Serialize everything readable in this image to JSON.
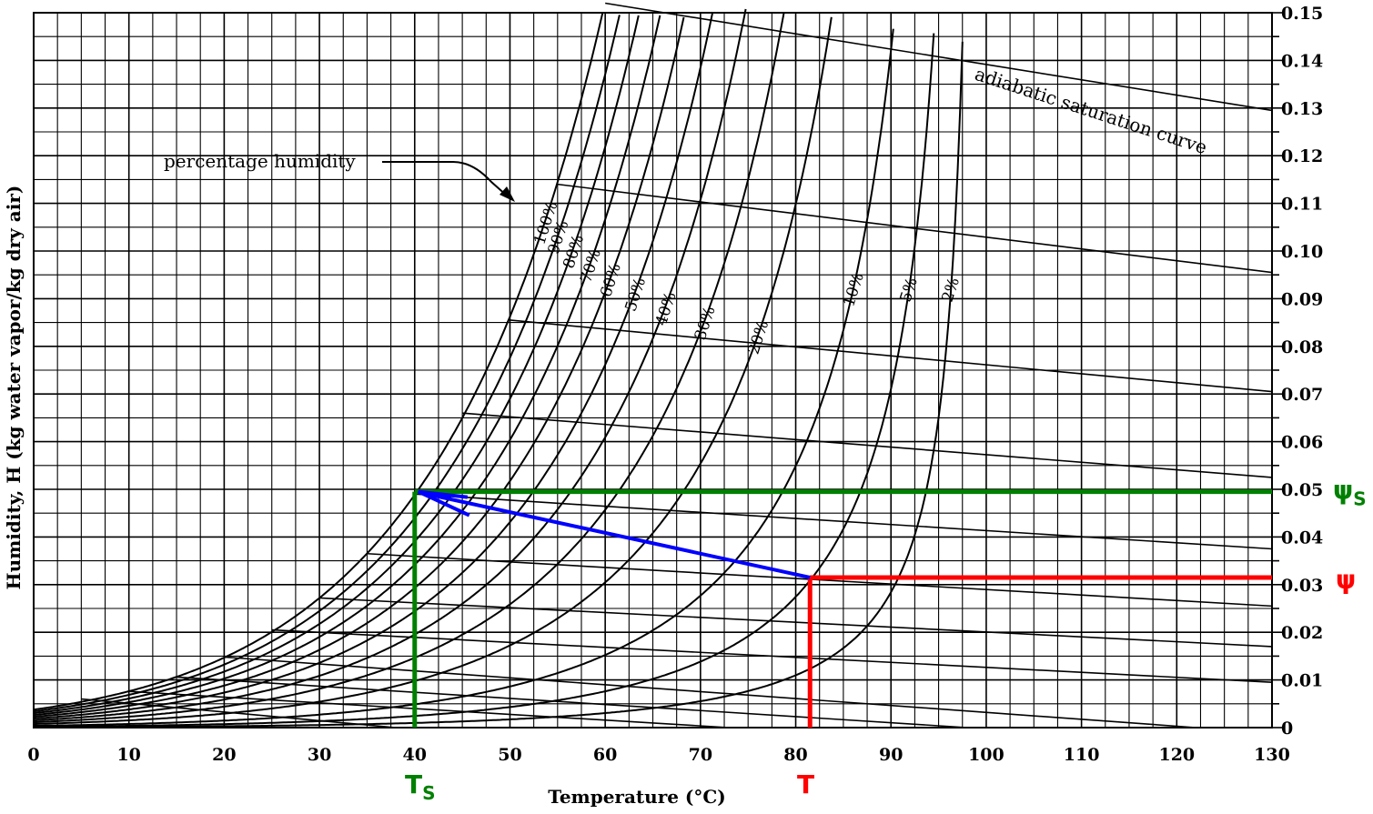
{
  "chart_data": {
    "type": "line",
    "subtype": "psychrometric chart",
    "xlabel": "Temperature (°C)",
    "ylabel": "Humidity, H (kg water vapor/kg dry air)",
    "xlim": [
      0,
      130
    ],
    "ylim": [
      0,
      0.15
    ],
    "x_ticks": [
      "0",
      "10",
      "20",
      "30",
      "40",
      "50",
      "60",
      "70",
      "80",
      "90",
      "100",
      "110",
      "120",
      "130"
    ],
    "y_ticks": [
      "0",
      "0.01",
      "0.02",
      "0.03",
      "0.04",
      "0.05",
      "0.06",
      "0.07",
      "0.08",
      "0.09",
      "0.10",
      "0.11",
      "0.12",
      "0.13",
      "0.14",
      "0.15"
    ],
    "grid": true,
    "percentage_humidity_label": "percentage humidity",
    "adiabatic_label": "adiabatic saturation curve",
    "humidity_series": [
      {
        "name": "100%",
        "value": 100
      },
      {
        "name": "90%",
        "value": 90
      },
      {
        "name": "80%",
        "value": 80
      },
      {
        "name": "70%",
        "value": 70
      },
      {
        "name": "60%",
        "value": 60
      },
      {
        "name": "50%",
        "value": 50
      },
      {
        "name": "40%",
        "value": 40
      },
      {
        "name": "30%",
        "value": 30
      },
      {
        "name": "20%",
        "value": 20
      },
      {
        "name": "10%",
        "value": 10
      },
      {
        "name": "5%",
        "value": 5
      },
      {
        "name": "2%",
        "value": 2
      }
    ],
    "adiabatic_lines": [
      {
        "x": [
          5,
          38
        ],
        "y": [
          0.006,
          0.0
        ]
      },
      {
        "x": [
          10,
          73
        ],
        "y": [
          0.0076,
          0.0
        ]
      },
      {
        "x": [
          15,
          98
        ],
        "y": [
          0.0106,
          0.0
        ]
      },
      {
        "x": [
          20,
          122
        ],
        "y": [
          0.0148,
          0.0
        ]
      },
      {
        "x": [
          25,
          130
        ],
        "y": [
          0.0205,
          0.0095
        ]
      },
      {
        "x": [
          30,
          130
        ],
        "y": [
          0.0272,
          0.017
        ]
      },
      {
        "x": [
          35,
          130
        ],
        "y": [
          0.0365,
          0.0255
        ]
      },
      {
        "x": [
          40,
          130
        ],
        "y": [
          0.049,
          0.0375
        ]
      },
      {
        "x": [
          45,
          130
        ],
        "y": [
          0.066,
          0.0525
        ]
      },
      {
        "x": [
          50,
          130
        ],
        "y": [
          0.0855,
          0.0705
        ]
      },
      {
        "x": [
          55,
          130
        ],
        "y": [
          0.114,
          0.0955
        ]
      },
      {
        "x": [
          60,
          130
        ],
        "y": [
          0.152,
          0.1295
        ]
      }
    ],
    "annotations": {
      "T": {
        "label": "T",
        "x": 81.5,
        "y": 0.0315,
        "color": "#ff0000"
      },
      "Ts": {
        "label": "T",
        "sub": "S",
        "x": 40.0,
        "y": 0.0495,
        "color": "#008000"
      },
      "psi": {
        "label": "ψ",
        "color": "#ff0000"
      },
      "psi_s": {
        "label": "ψ",
        "sub": "S",
        "color": "#008000"
      },
      "arrow_color": "#0000ff"
    }
  }
}
